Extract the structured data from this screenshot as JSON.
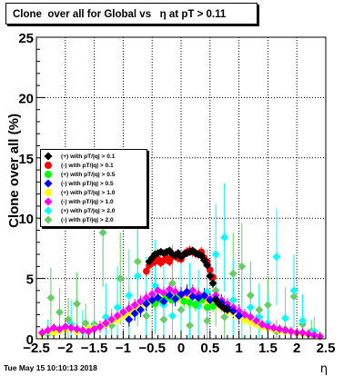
{
  "header": {
    "title": "Clone  over all for Global vs   η at pT > 0.11"
  },
  "footer": {
    "timestamp": "Tue May 15 10:10:13 2018"
  },
  "chart_data": {
    "type": "scatter",
    "title": "Clone  over all for Global vs   η at pT > 0.11",
    "xlabel": "η",
    "ylabel": "Clone  over all (%)",
    "xlim": [
      -2.5,
      2.5
    ],
    "ylim": [
      0,
      25
    ],
    "x_ticks": [
      "−2.5",
      "−2",
      "−1.5",
      "−1",
      "−0.5",
      "0",
      "0.5",
      "1",
      "1.5",
      "2",
      "2.5"
    ],
    "y_ticks": [
      "0",
      "5",
      "10",
      "15",
      "20",
      "25"
    ],
    "grid": true,
    "legend_position": "upper-left",
    "series": [
      {
        "name": "(+) with pT/|q| > 0.1",
        "color": "#000000",
        "marker": "diamond",
        "x": [
          -0.55,
          -0.5,
          -0.45,
          -0.4,
          -0.35,
          -0.3,
          -0.25,
          -0.2,
          -0.15,
          -0.1,
          -0.05,
          0.0,
          0.05,
          0.1,
          0.15,
          0.2,
          0.25,
          0.3,
          0.35,
          0.4,
          0.45,
          0.5,
          0.55,
          0.6,
          0.65,
          0.7,
          0.75,
          0.8
        ],
        "y": [
          6.4,
          6.7,
          7.0,
          7.1,
          7.2,
          7.1,
          7.2,
          7.3,
          7.0,
          6.9,
          7.1,
          6.8,
          7.0,
          7.1,
          7.2,
          7.3,
          7.1,
          7.0,
          6.9,
          6.5,
          6.1,
          5.2,
          4.6,
          3.2,
          2.9,
          2.7,
          2.5,
          2.4
        ],
        "err": [
          0.3,
          0.3,
          0.3,
          0.3,
          0.3,
          0.3,
          0.3,
          0.3,
          0.3,
          0.3,
          0.3,
          0.3,
          0.3,
          0.3,
          0.3,
          0.3,
          0.3,
          0.3,
          0.3,
          0.3,
          0.3,
          0.4,
          0.4,
          0.4,
          0.4,
          0.4,
          0.4,
          0.4
        ]
      },
      {
        "name": "(-) with pT/|q| > 0.1",
        "color": "#ff0000",
        "marker": "circle",
        "x": [
          -0.6,
          -0.55,
          -0.5,
          -0.45,
          -0.4,
          -0.35,
          -0.3,
          -0.25,
          -0.2,
          -0.15,
          -0.1,
          -0.05,
          0.0,
          0.05,
          0.1,
          0.15,
          0.2,
          0.25,
          0.3,
          0.35,
          0.4,
          0.45,
          0.5,
          0.55
        ],
        "y": [
          5.6,
          6.1,
          6.3,
          6.4,
          6.6,
          6.3,
          6.5,
          6.7,
          6.4,
          6.8,
          6.9,
          6.7,
          6.6,
          7.0,
          7.2,
          7.3,
          7.2,
          7.1,
          7.0,
          7.2,
          6.7,
          6.4,
          5.7,
          5.1
        ],
        "err": [
          0.4,
          0.4,
          0.4,
          0.4,
          0.4,
          0.4,
          0.4,
          0.4,
          0.4,
          0.4,
          0.4,
          0.4,
          0.4,
          0.4,
          0.4,
          0.4,
          0.4,
          0.4,
          0.4,
          0.4,
          0.4,
          0.4,
          0.4,
          0.4
        ]
      },
      {
        "name": "(+) with pT/|q| > 0.5",
        "color": "#00ff00",
        "marker": "circle",
        "x": [
          -0.45,
          -0.35,
          -0.25,
          -0.15,
          -0.05,
          0.05,
          0.15,
          0.25,
          0.35,
          0.45,
          0.55
        ],
        "y": [
          2.9,
          3.2,
          3.4,
          3.2,
          3.5,
          3.1,
          3.0,
          2.8,
          3.2,
          2.6,
          2.7
        ],
        "err": [
          0.5,
          0.5,
          0.5,
          0.5,
          0.5,
          0.5,
          0.5,
          0.5,
          0.5,
          0.5,
          0.5
        ]
      },
      {
        "name": "(-) with pT/|q| > 0.5",
        "color": "#0000ff",
        "marker": "diamond",
        "x": [
          -0.9,
          -0.8,
          -0.7,
          -0.6,
          -0.5,
          -0.4,
          -0.3,
          -0.2,
          -0.1,
          0.0,
          0.1,
          0.2,
          0.3,
          0.4,
          0.5,
          0.6,
          0.7,
          0.8,
          0.9,
          1.0
        ],
        "y": [
          1.6,
          2.1,
          2.4,
          2.9,
          3.2,
          3.4,
          3.1,
          3.6,
          3.3,
          3.7,
          3.9,
          3.5,
          3.4,
          3.6,
          3.2,
          3.3,
          3.0,
          2.6,
          2.3,
          1.9
        ],
        "err": [
          0.6,
          0.6,
          0.6,
          0.6,
          0.6,
          0.6,
          0.6,
          0.6,
          0.6,
          0.6,
          0.6,
          0.6,
          0.6,
          0.6,
          0.6,
          0.6,
          0.6,
          0.6,
          0.6,
          0.6
        ]
      },
      {
        "name": "(+) with pT/|q| > 1.0",
        "color": "#ffff00",
        "marker": "circle",
        "x": [
          -2.4,
          -2.3,
          -2.2,
          -2.1,
          -2.0,
          -1.9,
          -1.8,
          -1.7,
          -1.6,
          -1.5,
          -1.4,
          -1.3,
          -1.2,
          -1.1,
          -1.0,
          -0.9,
          -0.8,
          -0.7,
          -0.6,
          -0.5,
          -0.4,
          -0.3,
          -0.2,
          -0.1,
          0.0,
          0.1,
          0.2,
          0.3,
          0.4,
          0.5,
          0.6,
          0.7,
          0.8,
          0.9,
          1.0,
          1.1,
          1.2,
          1.3,
          1.4,
          1.5,
          1.6,
          1.7,
          1.8,
          1.9,
          2.0,
          2.1,
          2.2,
          2.3,
          2.4
        ],
        "y": [
          0.4,
          0.6,
          0.5,
          0.7,
          0.8,
          0.9,
          0.6,
          0.7,
          0.8,
          0.9,
          1.0,
          1.2,
          1.5,
          1.6,
          1.9,
          2.1,
          2.4,
          2.6,
          2.9,
          3.1,
          3.3,
          3.5,
          3.4,
          3.6,
          3.3,
          3.5,
          3.7,
          3.4,
          3.2,
          3.0,
          2.8,
          2.6,
          2.3,
          2.1,
          1.8,
          1.6,
          1.4,
          1.2,
          1.0,
          0.9,
          0.8,
          0.7,
          0.6,
          0.6,
          0.5,
          0.4,
          0.4,
          0.3,
          0.2
        ],
        "err": [
          0.4,
          0.4,
          0.4,
          0.4,
          0.4,
          0.4,
          0.4,
          0.4,
          0.4,
          0.4,
          0.4,
          0.4,
          0.5,
          0.5,
          0.5,
          0.5,
          0.5,
          0.5,
          0.5,
          0.5,
          0.5,
          0.5,
          0.5,
          0.5,
          0.5,
          0.5,
          0.5,
          0.5,
          0.5,
          0.5,
          0.5,
          0.5,
          0.5,
          0.5,
          0.5,
          0.5,
          0.4,
          0.4,
          0.4,
          0.4,
          0.4,
          0.4,
          0.4,
          0.4,
          0.4,
          0.4,
          0.4,
          0.4,
          0.4
        ]
      },
      {
        "name": "(-) with pT/|q| > 1.0",
        "color": "#ff00ff",
        "marker": "diamond",
        "x": [
          -2.4,
          -2.3,
          -2.2,
          -2.1,
          -2.0,
          -1.9,
          -1.8,
          -1.7,
          -1.6,
          -1.5,
          -1.4,
          -1.3,
          -1.2,
          -1.1,
          -1.0,
          -0.9,
          -0.8,
          -0.7,
          -0.6,
          -0.5,
          -0.4,
          -0.3,
          -0.2,
          -0.1,
          0.0,
          0.1,
          0.2,
          0.3,
          0.4,
          0.5,
          0.6,
          0.7,
          0.8,
          0.9,
          1.0,
          1.1,
          1.2,
          1.3,
          1.4,
          1.5,
          1.6,
          1.7,
          1.8,
          1.9,
          2.0,
          2.1,
          2.2,
          2.3,
          2.4
        ],
        "y": [
          0.5,
          0.7,
          0.9,
          0.8,
          1.0,
          0.9,
          0.8,
          0.7,
          0.6,
          0.8,
          1.0,
          1.3,
          1.6,
          1.9,
          2.2,
          2.5,
          2.8,
          3.1,
          3.4,
          3.7,
          4.0,
          3.8,
          4.1,
          3.9,
          3.6,
          3.8,
          4.0,
          3.7,
          3.5,
          3.3,
          3.6,
          3.2,
          2.9,
          2.6,
          2.3,
          2.0,
          1.8,
          1.5,
          1.2,
          1.0,
          0.9,
          0.8,
          0.7,
          0.6,
          0.5,
          0.5,
          0.4,
          0.3,
          0.2
        ],
        "err": [
          0.4,
          0.4,
          0.4,
          0.4,
          0.4,
          0.4,
          0.4,
          0.4,
          0.4,
          0.4,
          0.5,
          0.5,
          0.5,
          0.5,
          0.5,
          0.5,
          0.5,
          0.5,
          0.5,
          0.5,
          0.5,
          0.5,
          0.5,
          0.5,
          0.5,
          0.5,
          0.5,
          0.5,
          0.5,
          0.5,
          0.5,
          0.5,
          0.5,
          0.5,
          0.5,
          0.5,
          0.5,
          0.5,
          0.4,
          0.4,
          0.4,
          0.4,
          0.4,
          0.4,
          0.4,
          0.4,
          0.4,
          0.4,
          0.4
        ]
      },
      {
        "name": "(+) with pT/|q| > 2.0",
        "color": "#00ffff",
        "marker": "diamond",
        "x": [
          -2.3,
          -2.1,
          -1.9,
          -1.7,
          -1.5,
          -1.3,
          -1.1,
          -0.9,
          -0.75,
          -0.6,
          -0.45,
          -0.3,
          -0.15,
          0.0,
          0.15,
          0.3,
          0.45,
          0.6,
          0.75,
          0.9,
          1.05,
          1.2,
          1.35,
          1.5,
          1.65,
          1.8,
          1.95,
          2.1,
          2.3
        ],
        "y": [
          0.4,
          0.8,
          1.2,
          0.6,
          1.0,
          1.8,
          2.6,
          3.6,
          5.2,
          3.3,
          4.4,
          2.8,
          1.9,
          3.4,
          3.1,
          2.7,
          3.9,
          7.0,
          8.4,
          3.2,
          2.1,
          2.6,
          1.8,
          1.3,
          6.8,
          1.7,
          4.0,
          1.5,
          0.6
        ],
        "err": [
          1.2,
          1.5,
          2.0,
          1.8,
          2.2,
          2.8,
          3.4,
          3.8,
          4.2,
          3.5,
          3.8,
          3.2,
          3.0,
          3.4,
          3.2,
          3.0,
          3.5,
          4.2,
          4.5,
          3.4,
          2.8,
          3.0,
          2.6,
          2.4,
          4.0,
          2.6,
          3.0,
          2.2,
          1.2
        ]
      },
      {
        "name": "(-) with pT/|q| > 2.0",
        "color": "#66cc66",
        "marker": "diamond",
        "x": [
          -2.25,
          -2.1,
          -1.95,
          -1.8,
          -1.65,
          -1.5,
          -1.35,
          -1.2,
          -1.05,
          -0.9,
          -0.75,
          -0.6,
          -0.45,
          -0.3,
          -0.15,
          0.0,
          0.15,
          0.3,
          0.45,
          0.6,
          0.75,
          0.9,
          1.05,
          1.2,
          1.35,
          1.5,
          1.65,
          1.8,
          1.95,
          2.1,
          2.25
        ],
        "y": [
          3.4,
          2.2,
          1.6,
          2.9,
          1.3,
          1.2,
          8.8,
          1.1,
          5.0,
          2.2,
          6.4,
          1.9,
          3.0,
          1.6,
          4.6,
          2.4,
          1.1,
          3.1,
          1.5,
          4.0,
          1.8,
          5.4,
          6.0,
          3.6,
          2.4,
          2.8,
          0.6,
          0.8,
          3.5,
          1.2,
          0.6
        ],
        "err": [
          2.5,
          2.0,
          1.8,
          2.6,
          1.6,
          1.5,
          4.5,
          1.4,
          3.8,
          2.2,
          4.0,
          2.0,
          2.6,
          1.8,
          3.2,
          2.2,
          1.4,
          2.6,
          1.6,
          3.0,
          1.8,
          3.4,
          3.6,
          2.8,
          2.2,
          2.4,
          1.0,
          1.2,
          2.6,
          1.4,
          1.0
        ]
      }
    ]
  }
}
